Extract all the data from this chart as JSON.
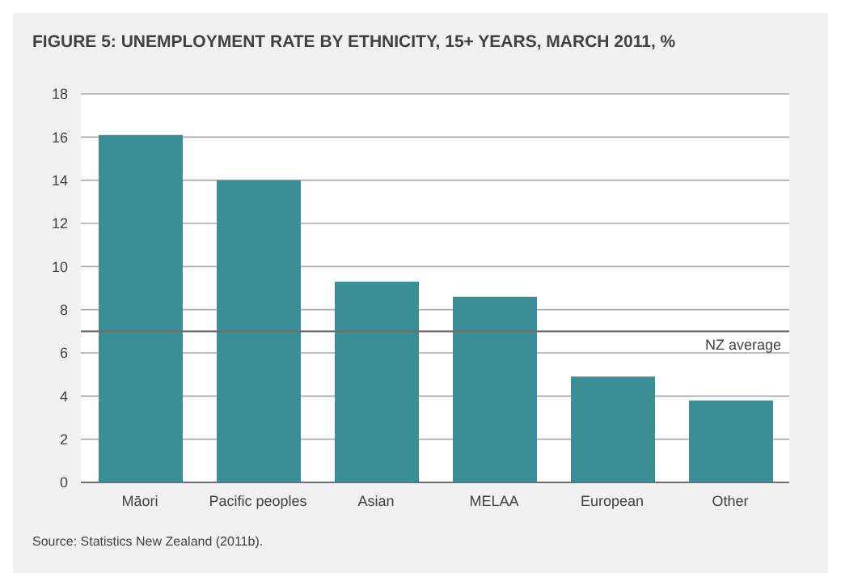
{
  "chart_data": {
    "type": "bar",
    "title": "FIGURE 5: UNEMPLOYMENT RATE BY ETHNICITY, 15+ YEARS, MARCH 2011, %",
    "categories": [
      "Māori",
      "Pacific peoples",
      "Asian",
      "MELAA",
      "European",
      "Other"
    ],
    "values": [
      16.1,
      14.0,
      9.3,
      8.6,
      4.9,
      3.8
    ],
    "color": "#3a8f96",
    "ylim": [
      0,
      18
    ],
    "yticks": [
      0,
      2,
      4,
      6,
      8,
      10,
      12,
      14,
      16,
      18
    ],
    "grid": "y",
    "ref_lines": [
      {
        "axis": "y",
        "value": 7,
        "label": "NZ average",
        "color": "#6d6e71"
      }
    ],
    "annotations": [
      "Source: Statistics New Zealand (2011b)."
    ]
  }
}
